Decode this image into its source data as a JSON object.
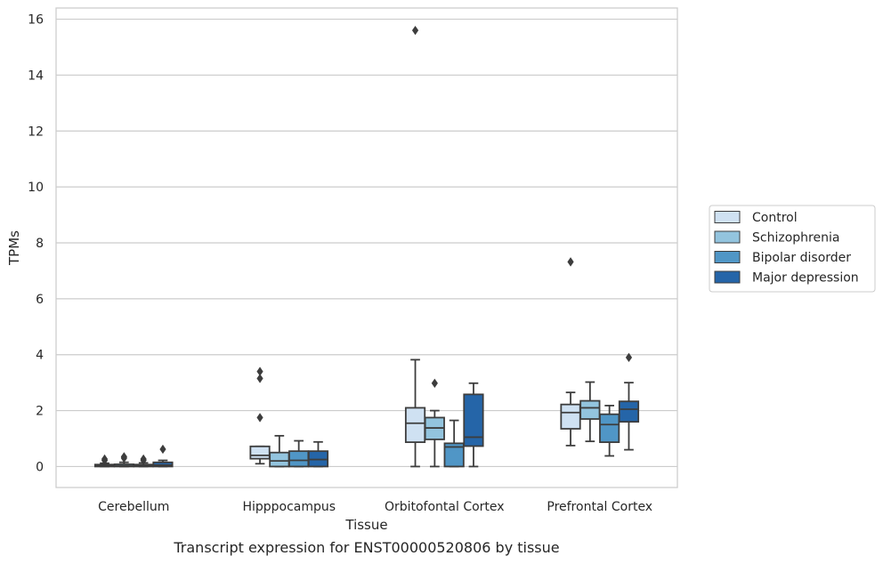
{
  "chart_data": {
    "type": "box",
    "title": "",
    "caption": "Transcript expression for ENST00000520806 by tissue",
    "xlabel": "Tissue",
    "ylabel": "TPMs",
    "ylim": [
      -0.75,
      16.4
    ],
    "yticks": [
      0,
      2,
      4,
      6,
      8,
      10,
      12,
      14,
      16
    ],
    "grid": "horizontal",
    "legend_position": "right",
    "categories": [
      "Cerebellum",
      "Hipppocampus",
      "Orbitofontal Cortex",
      "Prefrontal Cortex"
    ],
    "series": [
      {
        "name": "Control",
        "color": "#cfe1f2",
        "boxes": [
          {
            "whislo": 0.0,
            "q1": 0.0,
            "med": 0.03,
            "q3": 0.07,
            "whishi": 0.12,
            "fliers": [
              0.22,
              0.27
            ]
          },
          {
            "whislo": 0.1,
            "q1": 0.28,
            "med": 0.4,
            "q3": 0.72,
            "whishi": 0.72,
            "fliers": [
              1.75,
              3.15,
              3.4
            ]
          },
          {
            "whislo": 0.0,
            "q1": 0.87,
            "med": 1.55,
            "q3": 2.1,
            "whishi": 3.82,
            "fliers": [
              15.6
            ]
          },
          {
            "whislo": 0.75,
            "q1": 1.35,
            "med": 1.93,
            "q3": 2.22,
            "whishi": 2.65,
            "fliers": [
              7.32
            ]
          }
        ]
      },
      {
        "name": "Schizophrenia",
        "color": "#93c4de",
        "boxes": [
          {
            "whislo": 0.0,
            "q1": 0.0,
            "med": 0.02,
            "q3": 0.08,
            "whishi": 0.15,
            "fliers": [
              0.3,
              0.35
            ]
          },
          {
            "whislo": 0.0,
            "q1": 0.0,
            "med": 0.2,
            "q3": 0.5,
            "whishi": 1.1,
            "fliers": []
          },
          {
            "whislo": 0.0,
            "q1": 0.97,
            "med": 1.38,
            "q3": 1.75,
            "whishi": 2.0,
            "fliers": [
              2.98
            ]
          },
          {
            "whislo": 0.9,
            "q1": 1.7,
            "med": 2.1,
            "q3": 2.35,
            "whishi": 3.02,
            "fliers": []
          }
        ]
      },
      {
        "name": "Bipolar disorder",
        "color": "#5096c6",
        "boxes": [
          {
            "whislo": 0.0,
            "q1": 0.0,
            "med": 0.02,
            "q3": 0.07,
            "whishi": 0.13,
            "fliers": [
              0.22,
              0.27
            ]
          },
          {
            "whislo": 0.0,
            "q1": 0.0,
            "med": 0.22,
            "q3": 0.55,
            "whishi": 0.92,
            "fliers": []
          },
          {
            "whislo": 0.0,
            "q1": 0.0,
            "med": 0.7,
            "q3": 0.83,
            "whishi": 1.65,
            "fliers": []
          },
          {
            "whislo": 0.38,
            "q1": 0.87,
            "med": 1.5,
            "q3": 1.87,
            "whishi": 2.18,
            "fliers": []
          }
        ]
      },
      {
        "name": "Major depression",
        "color": "#2565a8",
        "boxes": [
          {
            "whislo": 0.0,
            "q1": 0.0,
            "med": 0.05,
            "q3": 0.15,
            "whishi": 0.22,
            "fliers": [
              0.62
            ]
          },
          {
            "whislo": 0.0,
            "q1": 0.0,
            "med": 0.25,
            "q3": 0.55,
            "whishi": 0.88,
            "fliers": []
          },
          {
            "whislo": 0.0,
            "q1": 0.73,
            "med": 1.05,
            "q3": 2.58,
            "whishi": 2.98,
            "fliers": []
          },
          {
            "whislo": 0.6,
            "q1": 1.6,
            "med": 2.05,
            "q3": 2.33,
            "whishi": 3.0,
            "fliers": [
              3.9
            ]
          }
        ]
      }
    ]
  }
}
